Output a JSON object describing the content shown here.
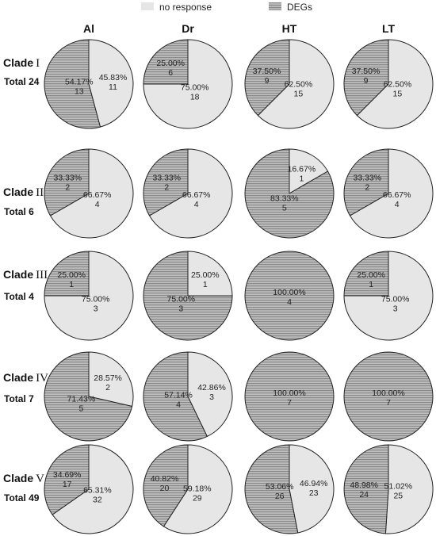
{
  "legend": {
    "items": [
      {
        "label": "no response",
        "color": "#e6e6e6",
        "pattern": "solid"
      },
      {
        "label": "DEGs",
        "color": "#a9a9a9",
        "pattern": "horizontal-stripes"
      }
    ]
  },
  "chart_data": {
    "type": "pie",
    "columns": [
      "Al",
      "Dr",
      "HT",
      "LT"
    ],
    "slice_order": [
      "no response",
      "DEGs"
    ],
    "rows": [
      {
        "clade_word": "Clade",
        "clade_numeral": "I",
        "total_label": "Total 24",
        "pies": [
          {
            "condition": "Al",
            "values": [
              11,
              13
            ],
            "labels": [
              {
                "pct": "45.83%",
                "count": "11"
              },
              {
                "pct": "54.17%",
                "count": "13"
              }
            ]
          },
          {
            "condition": "Dr",
            "values": [
              18,
              6
            ],
            "labels": [
              {
                "pct": "75.00%",
                "count": "18"
              },
              {
                "pct": "25.00%",
                "count": "6"
              }
            ]
          },
          {
            "condition": "HT",
            "values": [
              15,
              9
            ],
            "labels": [
              {
                "pct": "62.50%",
                "count": "15"
              },
              {
                "pct": "37.50%",
                "count": "9"
              }
            ]
          },
          {
            "condition": "LT",
            "values": [
              15,
              9
            ],
            "labels": [
              {
                "pct": "62.50%",
                "count": "15"
              },
              {
                "pct": "37.50%",
                "count": "9"
              }
            ]
          }
        ]
      },
      {
        "clade_word": "Clade",
        "clade_numeral": "II",
        "total_label": "Total 6",
        "pies": [
          {
            "condition": "Al",
            "values": [
              4,
              2
            ],
            "labels": [
              {
                "pct": "66.67%",
                "count": "4"
              },
              {
                "pct": "33.33%",
                "count": "2"
              }
            ]
          },
          {
            "condition": "Dr",
            "values": [
              4,
              2
            ],
            "labels": [
              {
                "pct": "66.67%",
                "count": "4"
              },
              {
                "pct": "33.33%",
                "count": "2"
              }
            ]
          },
          {
            "condition": "HT",
            "values": [
              1,
              5
            ],
            "labels": [
              {
                "pct": "16.67%",
                "count": "1"
              },
              {
                "pct": "83.33%",
                "count": "5"
              }
            ]
          },
          {
            "condition": "LT",
            "values": [
              4,
              2
            ],
            "labels": [
              {
                "pct": "66.67%",
                "count": "4"
              },
              {
                "pct": "33.33%",
                "count": "2"
              }
            ]
          }
        ]
      },
      {
        "clade_word": "Clade",
        "clade_numeral": "III",
        "total_label": "Total 4",
        "pies": [
          {
            "condition": "Al",
            "values": [
              3,
              1
            ],
            "labels": [
              {
                "pct": "75.00%",
                "count": "3"
              },
              {
                "pct": "25.00%",
                "count": "1"
              }
            ]
          },
          {
            "condition": "Dr",
            "values": [
              1,
              3
            ],
            "labels": [
              {
                "pct": "25.00%",
                "count": "1"
              },
              {
                "pct": "75.00%",
                "count": "3"
              }
            ]
          },
          {
            "condition": "HT",
            "values": [
              0,
              4
            ],
            "labels": [
              null,
              {
                "pct": "100.00%",
                "count": "4"
              }
            ]
          },
          {
            "condition": "LT",
            "values": [
              3,
              1
            ],
            "labels": [
              {
                "pct": "75.00%",
                "count": "3"
              },
              {
                "pct": "25.00%",
                "count": "1"
              }
            ]
          }
        ]
      },
      {
        "clade_word": "Clade",
        "clade_numeral": "IV",
        "total_label": "Total 7",
        "pies": [
          {
            "condition": "Al",
            "values": [
              2,
              5
            ],
            "labels": [
              {
                "pct": "28.57%",
                "count": "2"
              },
              {
                "pct": "71.43%",
                "count": "5"
              }
            ]
          },
          {
            "condition": "Dr",
            "values": [
              3,
              4
            ],
            "labels": [
              {
                "pct": "42.86%",
                "count": "3"
              },
              {
                "pct": "57.14%",
                "count": "4"
              }
            ]
          },
          {
            "condition": "HT",
            "values": [
              0,
              7
            ],
            "labels": [
              null,
              {
                "pct": "100.00%",
                "count": "7"
              }
            ]
          },
          {
            "condition": "LT",
            "values": [
              0,
              7
            ],
            "labels": [
              null,
              {
                "pct": "100.00%",
                "count": "7"
              }
            ]
          }
        ]
      },
      {
        "clade_word": "Clade",
        "clade_numeral": "V",
        "total_label": "Total 49",
        "pies": [
          {
            "condition": "Al",
            "values": [
              32,
              17
            ],
            "labels": [
              {
                "pct": "65.31%",
                "count": "32"
              },
              {
                "pct": "34.69%",
                "count": "17"
              }
            ]
          },
          {
            "condition": "Dr",
            "values": [
              29,
              20
            ],
            "labels": [
              {
                "pct": "59.18%",
                "count": "29"
              },
              {
                "pct": "40.82%",
                "count": "20"
              }
            ]
          },
          {
            "condition": "HT",
            "values": [
              23,
              26
            ],
            "labels": [
              {
                "pct": "46.94%",
                "count": "23"
              },
              {
                "pct": "53.06%",
                "count": "26"
              }
            ]
          },
          {
            "condition": "LT",
            "values": [
              25,
              24
            ],
            "labels": [
              {
                "pct": "51.02%",
                "count": "25"
              },
              {
                "pct": "48.98%",
                "count": "24"
              }
            ]
          }
        ]
      }
    ]
  }
}
